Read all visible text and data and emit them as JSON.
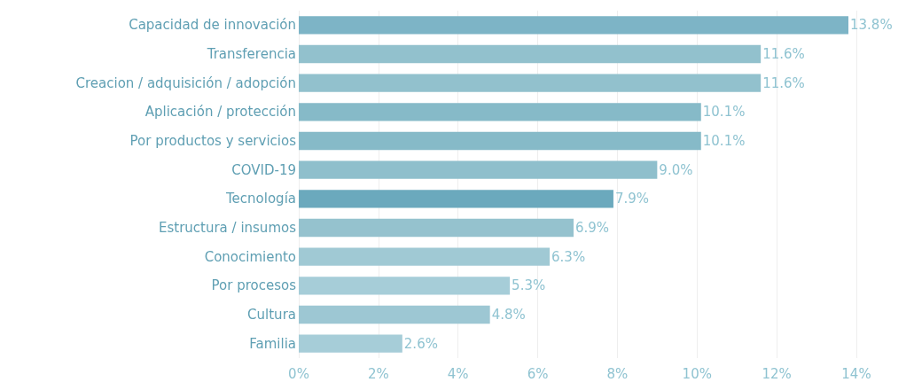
{
  "chart_data": {
    "type": "bar",
    "orientation": "horizontal",
    "categories": [
      "Capacidad de innovación",
      "Transferencia",
      "Creacion / adquisición / adopción",
      "Aplicación / protección",
      "Por productos y servicios",
      "COVID-19",
      "Tecnología",
      "Estructura / insumos",
      "Conocimiento",
      "Por procesos",
      "Cultura",
      "Familia"
    ],
    "values": [
      13.8,
      11.6,
      11.6,
      10.1,
      10.1,
      9.0,
      7.9,
      6.9,
      6.3,
      5.3,
      4.8,
      2.6
    ],
    "value_labels": [
      "13.8%",
      "11.6%",
      "11.6%",
      "10.1%",
      "10.1%",
      "9.0%",
      "7.9%",
      "6.9%",
      "6.3%",
      "5.3%",
      "4.8%",
      "2.6%"
    ],
    "colors": [
      "#7db4c6",
      "#92c1cd",
      "#92c1cd",
      "#86bac8",
      "#86bac8",
      "#8fbfcc",
      "#6ba9bd",
      "#95c2ce",
      "#a0c9d4",
      "#a6cdd8",
      "#9dc7d3",
      "#a6cdd8"
    ],
    "xlim": [
      0,
      14
    ],
    "xticks": [
      {
        "value": 0,
        "label": "0%"
      },
      {
        "value": 2,
        "label": "2%"
      },
      {
        "value": 4,
        "label": "4%"
      },
      {
        "value": 6,
        "label": "6%"
      },
      {
        "value": 8,
        "label": "8%"
      },
      {
        "value": 10,
        "label": "10%"
      },
      {
        "value": 12,
        "label": "12%"
      },
      {
        "value": 14,
        "label": "14%"
      }
    ],
    "grid": "x"
  }
}
